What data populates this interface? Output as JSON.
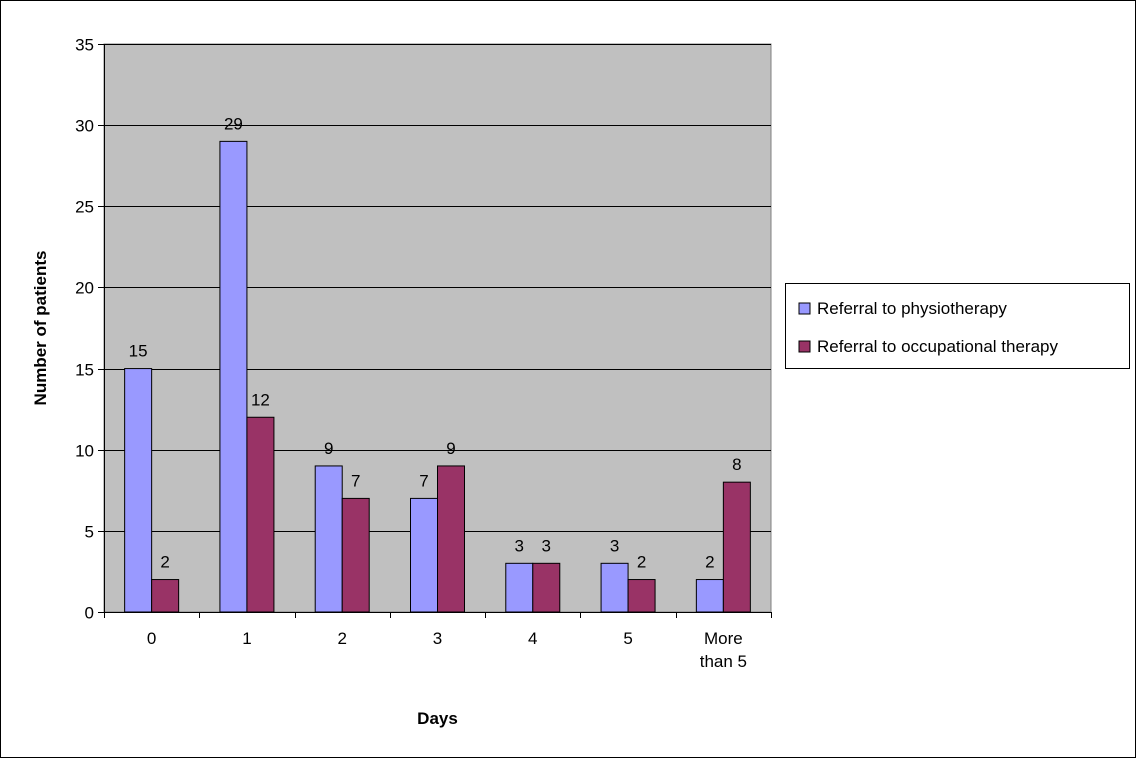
{
  "chart_data": {
    "type": "bar",
    "title": "",
    "xlabel": "Days",
    "ylabel": "Number of patients",
    "categories": [
      "0",
      "1",
      "2",
      "3",
      "4",
      "5",
      "More than 5"
    ],
    "series": [
      {
        "name": "Referral to physiotherapy",
        "values": [
          15,
          29,
          9,
          7,
          3,
          3,
          2
        ],
        "color": "#9999ff"
      },
      {
        "name": "Referral to occupational therapy",
        "values": [
          2,
          12,
          7,
          9,
          3,
          2,
          8
        ],
        "color": "#993366"
      }
    ],
    "ylim": [
      0,
      35
    ],
    "yticks": [
      0,
      5,
      10,
      15,
      20,
      25,
      30,
      35
    ],
    "grid": true,
    "plot_background": "#c0c0c0",
    "legend_position": "right",
    "data_labels": true
  }
}
